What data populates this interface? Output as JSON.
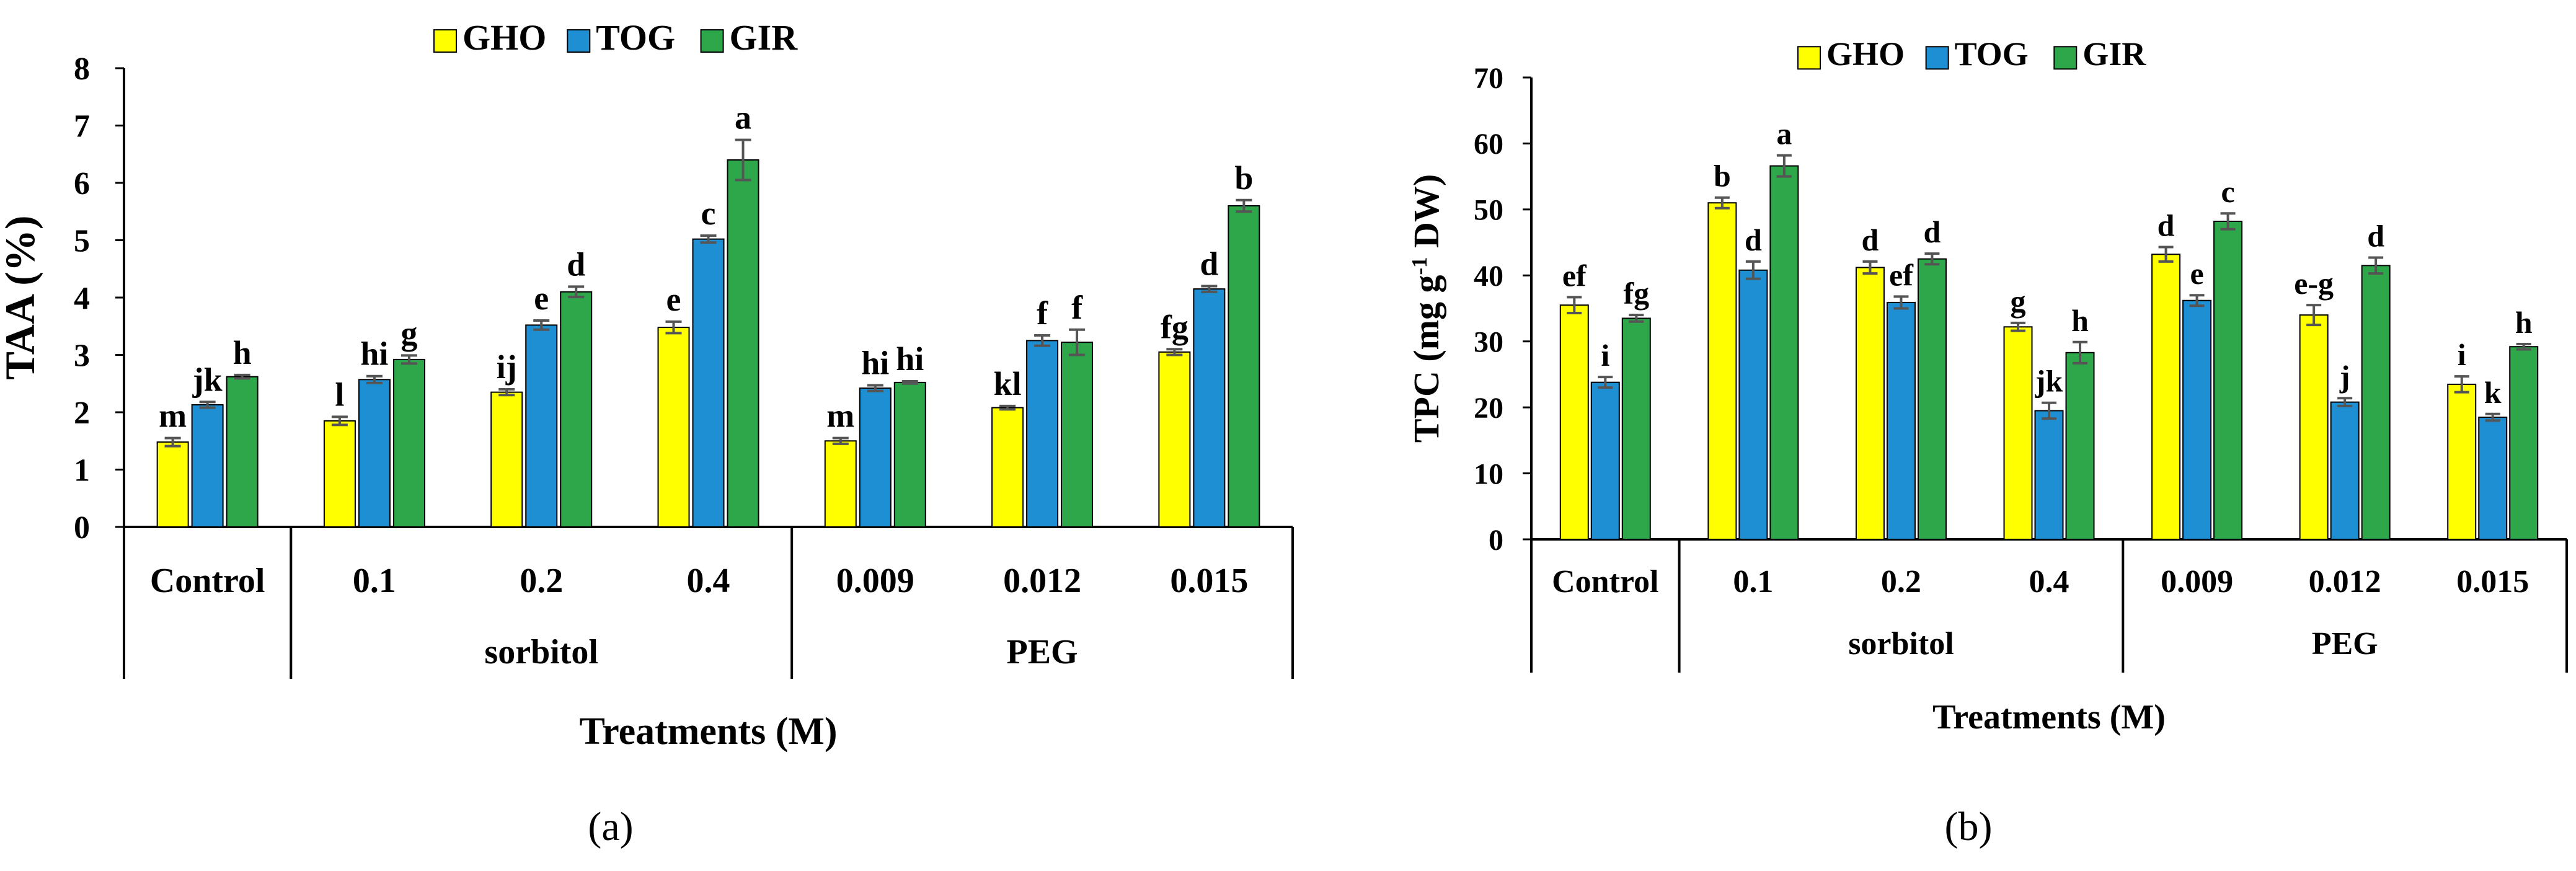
{
  "colors": {
    "GHO": "#ffff00",
    "TOG": "#1f8fd4",
    "GIR": "#2ea64a",
    "errorbar": "#555555",
    "axis": "#000000"
  },
  "chart_data": [
    {
      "type": "bar",
      "panel_label": "(a)",
      "title": "",
      "ylabel": "TAA (%)",
      "xlabel": "Treatments (M)",
      "ylim": [
        0,
        8
      ],
      "yticks": [
        "0",
        "1",
        "2",
        "3",
        "4",
        "5",
        "6",
        "7",
        "8"
      ],
      "legend": [
        "GHO",
        "TOG",
        "GIR"
      ],
      "legend_position": "top-center",
      "categories": [
        "Control",
        "0.1",
        "0.2",
        "0.4",
        "0.009",
        "0.012",
        "0.015"
      ],
      "groups": [
        {
          "label": "sorbitol",
          "from": 1,
          "to": 3
        },
        {
          "label": "PEG",
          "from": 4,
          "to": 6
        }
      ],
      "series": [
        {
          "name": "GHO",
          "values": [
            1.48,
            1.85,
            2.35,
            3.48,
            1.5,
            2.08,
            3.05
          ],
          "errors": [
            0.07,
            0.07,
            0.05,
            0.1,
            0.05,
            0.03,
            0.05
          ],
          "letters": [
            "m",
            "l",
            "ij",
            "e",
            "m",
            "kl",
            "fg"
          ]
        },
        {
          "name": "TOG",
          "values": [
            2.13,
            2.57,
            3.52,
            5.02,
            2.42,
            3.25,
            4.15
          ],
          "errors": [
            0.05,
            0.06,
            0.08,
            0.06,
            0.05,
            0.09,
            0.05
          ],
          "letters": [
            "jk",
            "hi",
            "e",
            "c",
            "hi",
            "f",
            "d"
          ]
        },
        {
          "name": "GIR",
          "values": [
            2.62,
            2.92,
            4.1,
            6.4,
            2.52,
            3.22,
            5.6
          ],
          "errors": [
            0.03,
            0.07,
            0.09,
            0.35,
            0.02,
            0.22,
            0.1
          ],
          "letters": [
            "h",
            "g",
            "d",
            "a",
            "hi",
            "f",
            "b"
          ]
        }
      ]
    },
    {
      "type": "bar",
      "panel_label": "(b)",
      "title": "",
      "ylabel": "TPC (mg g-1 DW)",
      "ylabel_parts": [
        "TPC (mg g",
        "-1",
        " DW)"
      ],
      "xlabel": "Treatments (M)",
      "ylim": [
        0,
        70
      ],
      "yticks": [
        "0",
        "10",
        "20",
        "30",
        "40",
        "50",
        "60",
        "70"
      ],
      "legend": [
        "GHO",
        "TOG",
        "GIR"
      ],
      "legend_position": "top-center",
      "categories": [
        "Control",
        "0.1",
        "0.2",
        "0.4",
        "0.009",
        "0.012",
        "0.015"
      ],
      "groups": [
        {
          "label": "sorbitol",
          "from": 1,
          "to": 3
        },
        {
          "label": "PEG",
          "from": 4,
          "to": 6
        }
      ],
      "series": [
        {
          "name": "GHO",
          "values": [
            35.5,
            51,
            41.2,
            32.2,
            43.2,
            34,
            23.5
          ],
          "errors": [
            1.2,
            0.8,
            0.9,
            0.6,
            1.1,
            1.5,
            1.2
          ],
          "letters": [
            "ef",
            "b",
            "d",
            "g",
            "d",
            "e-g",
            "i"
          ]
        },
        {
          "name": "TOG",
          "values": [
            23.8,
            40.8,
            35.9,
            19.5,
            36.2,
            20.8,
            18.5
          ],
          "errors": [
            0.8,
            1.3,
            0.9,
            1.2,
            0.8,
            0.6,
            0.5
          ],
          "letters": [
            "i",
            "d",
            "ef",
            "jk",
            "e",
            "j",
            "k"
          ]
        },
        {
          "name": "GIR",
          "values": [
            33.5,
            56.6,
            42.5,
            28.3,
            48.2,
            41.5,
            29.2
          ],
          "errors": [
            0.5,
            1.6,
            0.8,
            1.6,
            1.2,
            1.2,
            0.4
          ],
          "letters": [
            "fg",
            "a",
            "d",
            "h",
            "c",
            "d",
            "h"
          ]
        }
      ]
    }
  ]
}
